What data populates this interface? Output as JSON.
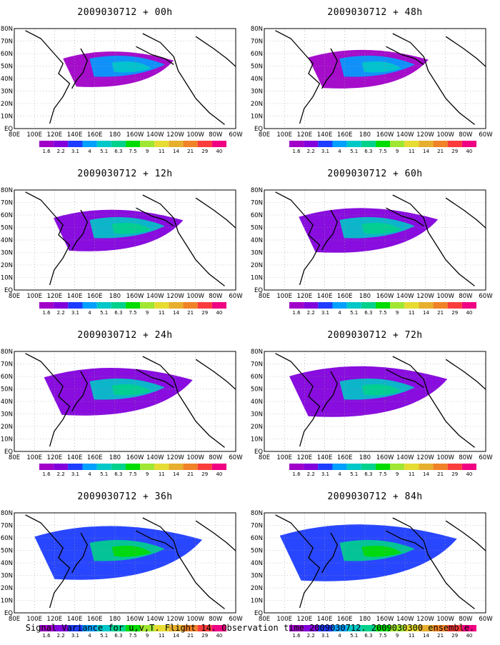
{
  "chart_data": [
    {
      "type": "heatmap",
      "title": "2009030712 + 00h"
    },
    {
      "type": "heatmap",
      "title": "2009030712 + 48h"
    },
    {
      "type": "heatmap",
      "title": "2009030712 + 12h"
    },
    {
      "type": "heatmap",
      "title": "2009030712 + 60h"
    },
    {
      "type": "heatmap",
      "title": "2009030712 + 24h"
    },
    {
      "type": "heatmap",
      "title": "2009030712 + 72h"
    },
    {
      "type": "heatmap",
      "title": "2009030712 + 36h"
    },
    {
      "type": "heatmap",
      "title": "2009030712 + 84h"
    }
  ],
  "axes": {
    "x_ticks": [
      "80E",
      "100E",
      "120E",
      "140E",
      "160E",
      "180",
      "160W",
      "140W",
      "120W",
      "100W",
      "80W",
      "60W"
    ],
    "y_ticks": [
      "EQ",
      "10N",
      "20N",
      "30N",
      "40N",
      "50N",
      "60N",
      "70N",
      "80N"
    ]
  },
  "colorbar": {
    "labels": [
      "1.6",
      "2.2",
      "3.1",
      "4",
      "5.1",
      "6.3",
      "7.5",
      "9",
      "11",
      "14",
      "21",
      "29",
      "40"
    ],
    "colors": [
      "#a000c8",
      "#8200dc",
      "#1e3cff",
      "#00a0ff",
      "#00c8c8",
      "#00d28c",
      "#00dc00",
      "#a0e632",
      "#e6dc32",
      "#e6af2d",
      "#f08228",
      "#fa3c3c",
      "#f00082"
    ]
  },
  "footer": "Signal Variance for u,v,T. Flight 14. Observation time 2009030712. 2009030300 ensemble."
}
